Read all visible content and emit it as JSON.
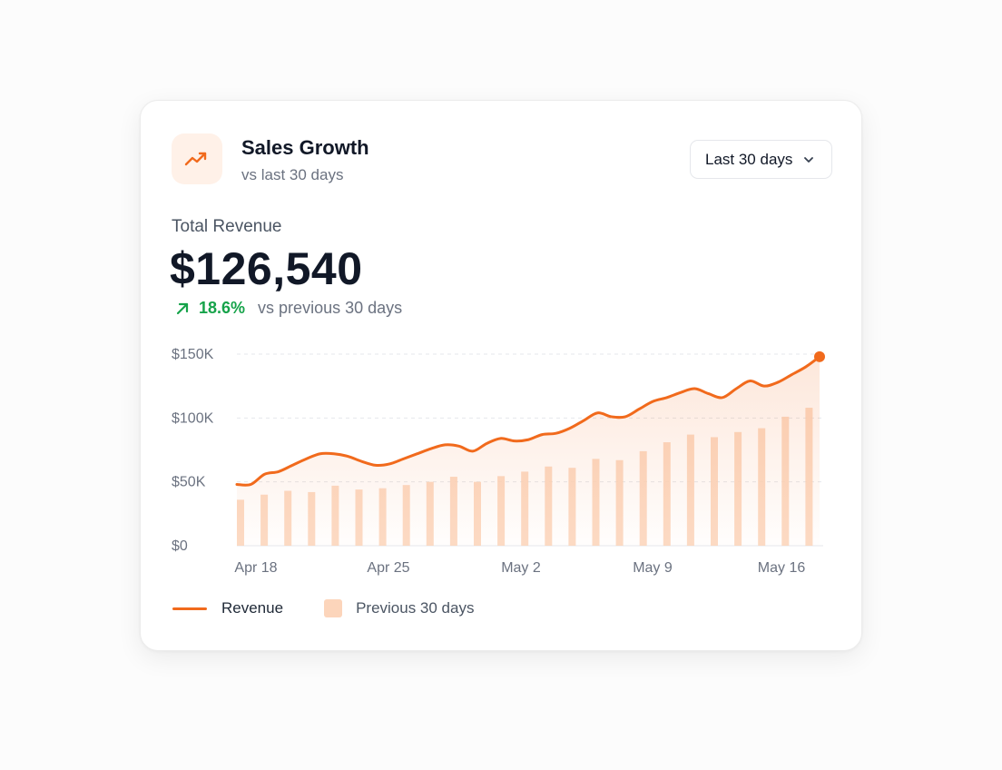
{
  "card": {
    "title": "Sales Growth",
    "subtitle": "vs last 30 days",
    "icon": "trending-up-icon",
    "range_select": {
      "value": "Last 30 days",
      "icon": "chevron-down-icon"
    }
  },
  "metric": {
    "label": "Total Revenue",
    "value": "$126,540",
    "change": "18.6%",
    "change_icon": "arrow-up-right-icon",
    "change_note": "vs previous 30 days"
  },
  "legend": {
    "revenue": "Revenue",
    "previous": "Previous 30 days"
  },
  "colors": {
    "accent": "#f16a1c",
    "bars": "#fcd5bb",
    "positive": "#16a34a"
  },
  "chart_data": {
    "type": "line",
    "x_tick_labels": [
      "Apr 18",
      "Apr 25",
      "May 2",
      "May 9",
      "May 16"
    ],
    "y_tick_labels": [
      "$0",
      "$50K",
      "$100K",
      "$150K"
    ],
    "ylim": [
      0,
      150000
    ],
    "grid": true,
    "series": [
      {
        "name": "Revenue",
        "style": "line-area",
        "values": [
          48000,
          48000,
          56000,
          58000,
          63000,
          68000,
          72000,
          72000,
          70000,
          66000,
          63000,
          64000,
          68000,
          72000,
          76000,
          79000,
          78000,
          74000,
          80000,
          84000,
          82000,
          83000,
          87000,
          88000,
          92000,
          98000,
          104000,
          101000,
          101000,
          107000,
          113000,
          116000,
          120000,
          123000,
          119000,
          116000,
          123000,
          129000,
          125000,
          128000,
          134000,
          140000,
          148000
        ]
      },
      {
        "name": "Previous 30 days",
        "style": "bar",
        "values": [
          36000,
          40000,
          43000,
          42000,
          47000,
          44000,
          45000,
          47500,
          50000,
          54000,
          50000,
          54500,
          58000,
          62000,
          61000,
          68000,
          67000,
          74000,
          81000,
          87000,
          85000,
          89000,
          92000,
          101000,
          108000
        ]
      }
    ]
  }
}
